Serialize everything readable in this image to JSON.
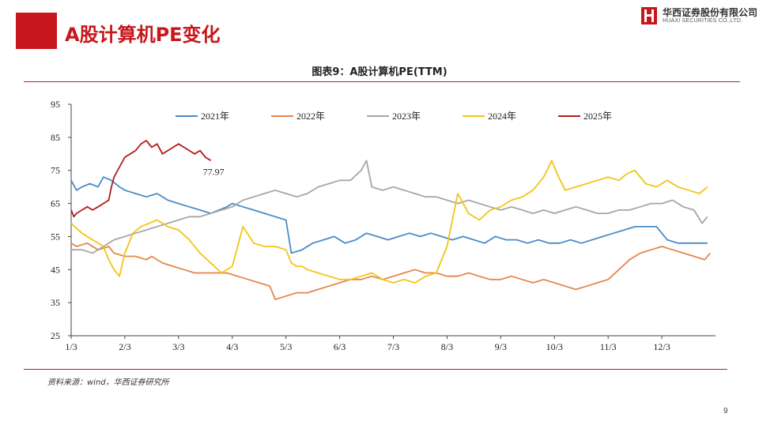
{
  "header": {
    "title": "A股计算机PE变化"
  },
  "logo": {
    "cn": "华西证券股份有限公司",
    "en": "HUAXI SECURITIES CO.,LTD."
  },
  "colors": {
    "brand_red": "#c8161d",
    "series_2021": "#4a8bc8",
    "series_2022": "#e5864a",
    "series_2023": "#a6a6a6",
    "series_2024": "#f2c514",
    "series_2025": "#b01c1c"
  },
  "chart_data": {
    "type": "line",
    "title": "图表9：A股计算机PE(TTM)",
    "xlabel": "",
    "ylabel": "",
    "x_ticks": [
      "1/3",
      "2/3",
      "3/3",
      "4/3",
      "5/3",
      "6/3",
      "7/3",
      "8/3",
      "9/3",
      "10/3",
      "11/3",
      "12/3"
    ],
    "x_range": [
      0,
      12.0
    ],
    "ylim": [
      25,
      95
    ],
    "y_ticks": [
      25,
      35,
      45,
      55,
      65,
      75,
      85,
      95
    ],
    "grid": false,
    "legend_position": "top",
    "annotations": [
      {
        "text": "77.97",
        "x": 2.6,
        "y": 77.97
      }
    ],
    "series": [
      {
        "name": "2021年",
        "color_key": "series_2021",
        "x": [
          0,
          0.1,
          0.2,
          0.35,
          0.5,
          0.6,
          0.75,
          0.9,
          1.0,
          1.2,
          1.4,
          1.6,
          1.8,
          2.0,
          2.2,
          2.4,
          2.6,
          2.75,
          2.9,
          3.0,
          3.2,
          3.4,
          3.6,
          3.8,
          4.0,
          4.1,
          4.3,
          4.5,
          4.7,
          4.9,
          5.1,
          5.3,
          5.5,
          5.7,
          5.9,
          6.1,
          6.3,
          6.5,
          6.7,
          6.9,
          7.1,
          7.3,
          7.5,
          7.7,
          7.9,
          8.1,
          8.3,
          8.5,
          8.7,
          8.9,
          9.1,
          9.3,
          9.5,
          9.7,
          9.9,
          10.1,
          10.3,
          10.5,
          10.7,
          10.9,
          11.1,
          11.3,
          11.5,
          11.7,
          11.85
        ],
        "values": [
          72,
          69,
          70,
          71,
          70,
          73,
          72,
          70,
          69,
          68,
          67,
          68,
          66,
          65,
          64,
          63,
          62,
          63,
          64,
          65,
          64,
          63,
          62,
          61,
          60,
          50,
          51,
          53,
          54,
          55,
          53,
          54,
          56,
          55,
          54,
          55,
          56,
          55,
          56,
          55,
          54,
          55,
          54,
          53,
          55,
          54,
          54,
          53,
          54,
          53,
          53,
          54,
          53,
          54,
          55,
          56,
          57,
          58,
          58,
          58,
          54,
          53,
          53,
          53,
          53
        ]
      },
      {
        "name": "2022年",
        "color_key": "series_2022",
        "x": [
          0,
          0.1,
          0.3,
          0.5,
          0.7,
          0.8,
          1.0,
          1.2,
          1.4,
          1.5,
          1.7,
          1.9,
          2.1,
          2.3,
          2.5,
          2.7,
          2.9,
          3.1,
          3.3,
          3.5,
          3.7,
          3.8,
          4.0,
          4.2,
          4.4,
          4.6,
          4.8,
          5.0,
          5.2,
          5.4,
          5.6,
          5.8,
          6.0,
          6.2,
          6.4,
          6.6,
          6.8,
          7.0,
          7.2,
          7.4,
          7.6,
          7.8,
          8.0,
          8.2,
          8.4,
          8.6,
          8.8,
          9.0,
          9.2,
          9.4,
          9.6,
          9.8,
          10.0,
          10.2,
          10.4,
          10.6,
          10.8,
          11.0,
          11.2,
          11.4,
          11.6,
          11.8,
          11.9
        ],
        "values": [
          53,
          52,
          53,
          51,
          52,
          50,
          49,
          49,
          48,
          49,
          47,
          46,
          45,
          44,
          44,
          44,
          44,
          43,
          42,
          41,
          40,
          36,
          37,
          38,
          38,
          39,
          40,
          41,
          42,
          42,
          43,
          42,
          43,
          44,
          45,
          44,
          44,
          43,
          43,
          44,
          43,
          42,
          42,
          43,
          42,
          41,
          42,
          41,
          40,
          39,
          40,
          41,
          42,
          45,
          48,
          50,
          51,
          52,
          51,
          50,
          49,
          48,
          50
        ]
      },
      {
        "name": "2023年",
        "color_key": "series_2023",
        "x": [
          0,
          0.2,
          0.4,
          0.6,
          0.8,
          1.0,
          1.2,
          1.4,
          1.6,
          1.8,
          2.0,
          2.2,
          2.4,
          2.6,
          2.8,
          3.0,
          3.2,
          3.4,
          3.6,
          3.8,
          4.0,
          4.2,
          4.4,
          4.6,
          4.8,
          5.0,
          5.2,
          5.4,
          5.5,
          5.6,
          5.8,
          6.0,
          6.2,
          6.4,
          6.6,
          6.8,
          7.0,
          7.2,
          7.4,
          7.6,
          7.8,
          8.0,
          8.2,
          8.4,
          8.6,
          8.8,
          9.0,
          9.2,
          9.4,
          9.6,
          9.8,
          10.0,
          10.2,
          10.4,
          10.6,
          10.8,
          11.0,
          11.2,
          11.4,
          11.6,
          11.75,
          11.85
        ],
        "values": [
          51,
          51,
          50,
          52,
          54,
          55,
          56,
          57,
          58,
          59,
          60,
          61,
          61,
          62,
          63,
          64,
          66,
          67,
          68,
          69,
          68,
          67,
          68,
          70,
          71,
          72,
          72,
          75,
          78,
          70,
          69,
          70,
          69,
          68,
          67,
          67,
          66,
          65,
          66,
          65,
          64,
          63,
          64,
          63,
          62,
          63,
          62,
          63,
          64,
          63,
          62,
          62,
          63,
          63,
          64,
          65,
          65,
          66,
          64,
          63,
          59,
          61
        ]
      },
      {
        "name": "2024年",
        "color_key": "series_2024",
        "x": [
          0,
          0.2,
          0.4,
          0.6,
          0.7,
          0.8,
          0.9,
          1.0,
          1.15,
          1.3,
          1.45,
          1.6,
          1.8,
          2.0,
          2.2,
          2.4,
          2.6,
          2.8,
          3.0,
          3.2,
          3.4,
          3.6,
          3.8,
          4.0,
          4.1,
          4.2,
          4.3,
          4.4,
          4.6,
          4.8,
          5.0,
          5.2,
          5.4,
          5.6,
          5.8,
          6.0,
          6.2,
          6.4,
          6.6,
          6.8,
          7.0,
          7.2,
          7.4,
          7.6,
          7.8,
          8.0,
          8.2,
          8.4,
          8.6,
          8.8,
          8.95,
          9.05,
          9.2,
          9.4,
          9.6,
          9.8,
          10.0,
          10.2,
          10.35,
          10.5,
          10.7,
          10.9,
          11.1,
          11.3,
          11.5,
          11.7,
          11.85
        ],
        "values": [
          59,
          56,
          54,
          52,
          48,
          45,
          43,
          50,
          56,
          58,
          59,
          60,
          58,
          57,
          54,
          50,
          47,
          44,
          46,
          58,
          53,
          52,
          52,
          51,
          47,
          46,
          46,
          45,
          44,
          43,
          42,
          42,
          43,
          44,
          42,
          41,
          42,
          41,
          43,
          44,
          52,
          68,
          62,
          60,
          63,
          64,
          66,
          67,
          69,
          73,
          78,
          74,
          69,
          70,
          71,
          72,
          73,
          72,
          74,
          75,
          71,
          70,
          72,
          70,
          69,
          68,
          70
        ]
      },
      {
        "name": "2025年",
        "color_key": "series_2025",
        "x": [
          0,
          0.05,
          0.1,
          0.2,
          0.3,
          0.4,
          0.5,
          0.6,
          0.7,
          0.75,
          0.8,
          0.9,
          1.0,
          1.1,
          1.2,
          1.3,
          1.4,
          1.5,
          1.6,
          1.7,
          1.8,
          1.9,
          2.0,
          2.1,
          2.2,
          2.3,
          2.4,
          2.5,
          2.6
        ],
        "values": [
          63,
          61,
          62,
          63,
          64,
          63,
          64,
          65,
          66,
          70,
          73,
          76,
          79,
          80,
          81,
          83,
          84,
          82,
          83,
          80,
          81,
          82,
          83,
          82,
          81,
          80,
          81,
          79,
          78
        ]
      }
    ]
  },
  "source": {
    "text": "资料来源：wind，华西证券研究所"
  },
  "page": {
    "number": "9"
  }
}
